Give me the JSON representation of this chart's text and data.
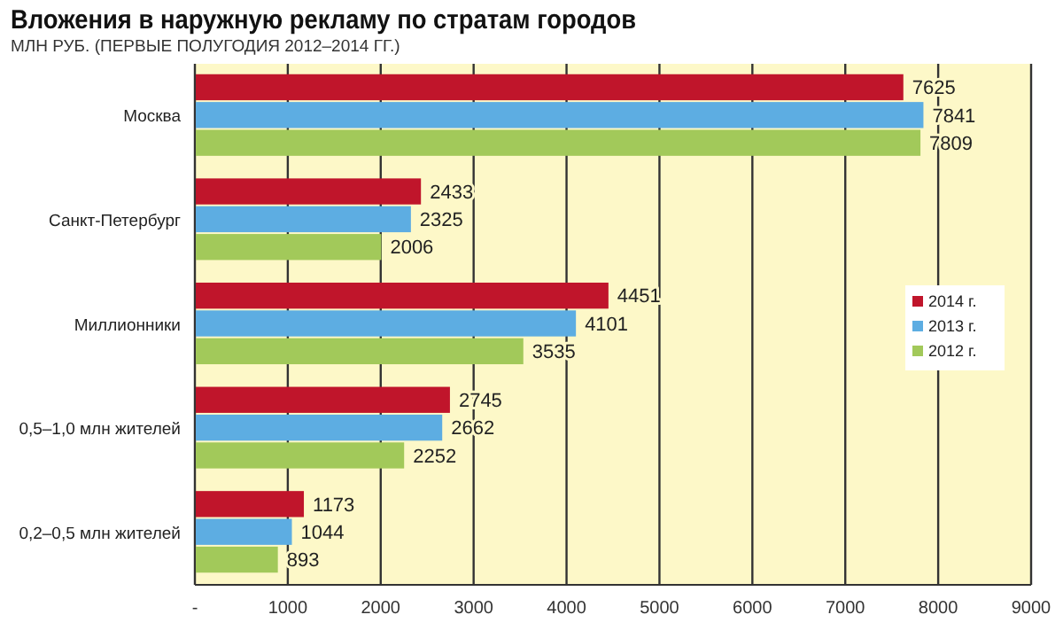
{
  "chart_data": {
    "type": "bar",
    "orientation": "horizontal",
    "title": "Вложения в наружную рекламу по стратам городов",
    "subtitle": "МЛН РУБ. (ПЕРВЫЕ ПОЛУГОДИЯ 2012–2014 ГГ.)",
    "categories": [
      "Москва",
      "Санкт-Петербург",
      "Миллионники",
      "0,5–1,0 млн  жителей",
      "0,2–0,5 млн  жителей"
    ],
    "series": [
      {
        "name": "2014 г.",
        "color": "#c0152b",
        "values": [
          7625,
          2433,
          4451,
          2745,
          1173
        ]
      },
      {
        "name": "2013 г.",
        "color": "#5dade2",
        "values": [
          7841,
          2325,
          4101,
          2662,
          1044
        ]
      },
      {
        "name": "2012 г.",
        "color": "#a2c95a",
        "values": [
          7809,
          2006,
          3535,
          2252,
          893
        ]
      }
    ],
    "xlim": [
      0,
      9000
    ],
    "xticks": [
      {
        "value": 0,
        "label": "-"
      },
      1000,
      2000,
      3000,
      4000,
      5000,
      6000,
      7000,
      8000,
      9000
    ],
    "grid": "x",
    "legend": "right",
    "data_labels": true
  }
}
